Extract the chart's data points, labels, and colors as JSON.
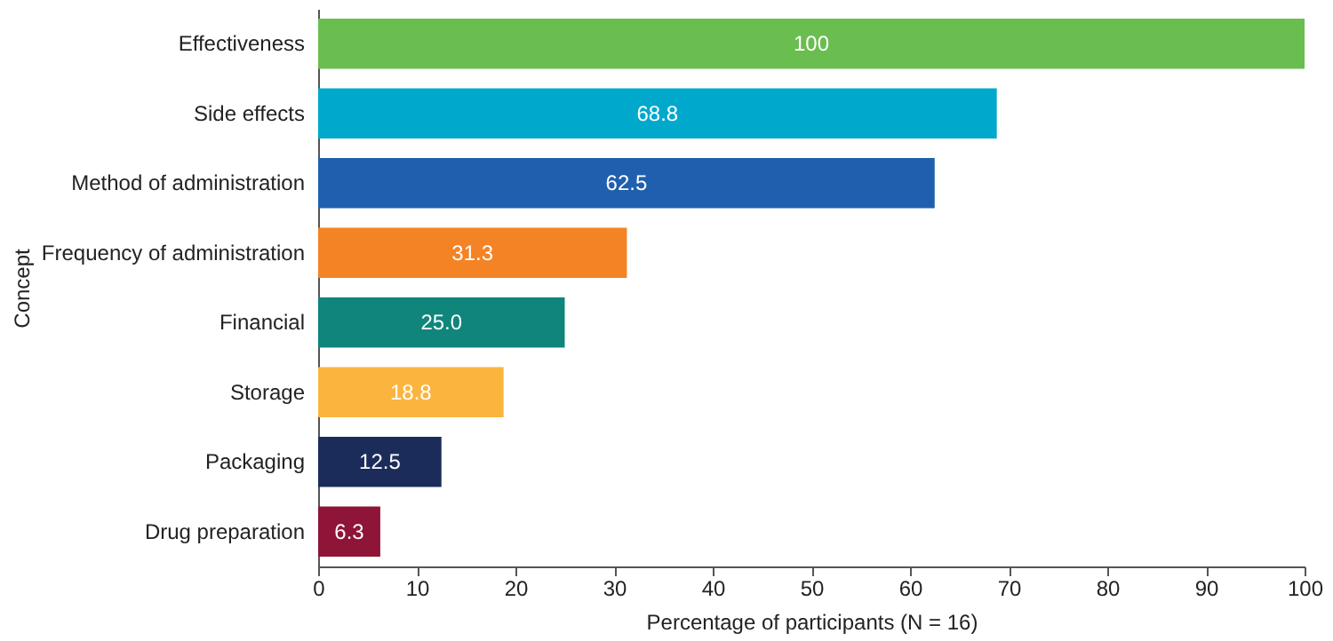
{
  "chart_data": {
    "type": "bar",
    "orientation": "horizontal",
    "xlabel": "Percentage of participants (N = 16)",
    "ylabel": "Concept",
    "categories": [
      "Effectiveness",
      "Side effects",
      "Method of administration",
      "Frequency of administration",
      "Financial",
      "Storage",
      "Packaging",
      "Drug preparation"
    ],
    "values": [
      100,
      68.8,
      62.5,
      31.3,
      25.0,
      18.8,
      12.5,
      6.3
    ],
    "value_labels": [
      "100",
      "68.8",
      "62.5",
      "31.3",
      "25.0",
      "18.8",
      "12.5",
      "6.3"
    ],
    "colors": [
      "#6abd4f",
      "#00a9cc",
      "#1f5fae",
      "#f48325",
      "#0f857b",
      "#fbb43e",
      "#1c2c5a",
      "#8e1538"
    ],
    "xlim": [
      0,
      100
    ],
    "xticks": [
      0,
      10,
      20,
      30,
      40,
      50,
      60,
      70,
      80,
      90,
      100
    ],
    "grid": false
  }
}
